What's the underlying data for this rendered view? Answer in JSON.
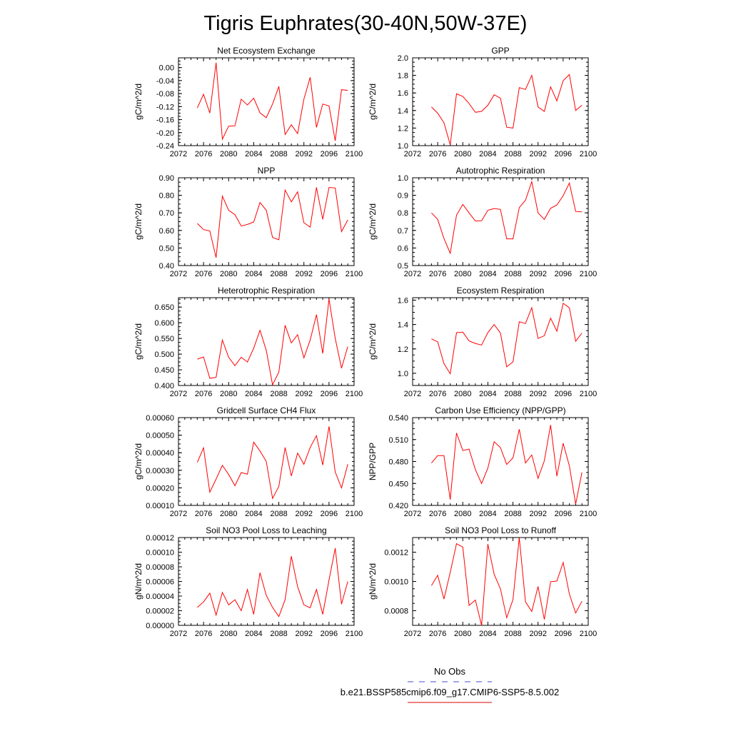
{
  "title": "Tigris Euphrates(30-40N,50W-37E)",
  "legend": {
    "entries": [
      {
        "label": "No Obs",
        "color": "#4a4ad0",
        "style": "dashed"
      },
      {
        "label": "b.e21.BSSP585cmip6.f09_g17.CMIP6-SSP5-8.5.002",
        "color": "#dd0000",
        "style": "solid"
      }
    ]
  },
  "colors": {
    "series": "#ff0000",
    "axis": "#000000"
  },
  "chart_data": [
    {
      "type": "line",
      "title": "Net Ecosystem Exchange",
      "ylabel": "gC/m^2/d",
      "xlim": [
        2072,
        2100
      ],
      "xticks": [
        "2072",
        "2076",
        "2080",
        "2084",
        "2088",
        "2092",
        "2096",
        "2100"
      ],
      "ylim": [
        -0.24,
        0.03
      ],
      "yticks": [
        "0.00",
        "-0.04",
        "-0.08",
        "-0.12",
        "-0.16",
        "-0.20",
        "-0.24"
      ],
      "x": [
        2075,
        2076,
        2077,
        2078,
        2079,
        2080,
        2081,
        2082,
        2083,
        2084,
        2085,
        2086,
        2087,
        2088,
        2089,
        2090,
        2091,
        2092,
        2093,
        2094,
        2095,
        2096,
        2097,
        2098,
        2099
      ],
      "series": [
        {
          "values": [
            -0.124,
            -0.082,
            -0.14,
            0.015,
            -0.22,
            -0.18,
            -0.179,
            -0.097,
            -0.115,
            -0.094,
            -0.139,
            -0.154,
            -0.112,
            -0.058,
            -0.206,
            -0.176,
            -0.203,
            -0.097,
            -0.03,
            -0.184,
            -0.112,
            -0.118,
            -0.225,
            -0.068,
            -0.07
          ]
        }
      ]
    },
    {
      "type": "line",
      "title": "GPP",
      "ylabel": "gC/m^2/d",
      "xlim": [
        2072,
        2100
      ],
      "xticks": [
        "2072",
        "2076",
        "2080",
        "2084",
        "2088",
        "2092",
        "2096",
        "2100"
      ],
      "ylim": [
        1.0,
        2.0
      ],
      "yticks": [
        "2.0",
        "1.8",
        "1.6",
        "1.4",
        "1.2",
        "1.0"
      ],
      "x": [
        2075,
        2076,
        2077,
        2078,
        2079,
        2080,
        2081,
        2082,
        2083,
        2084,
        2085,
        2086,
        2087,
        2088,
        2089,
        2090,
        2091,
        2092,
        2093,
        2094,
        2095,
        2096,
        2097,
        2098,
        2099
      ],
      "series": [
        {
          "values": [
            1.44,
            1.37,
            1.26,
            1.01,
            1.59,
            1.56,
            1.48,
            1.38,
            1.39,
            1.46,
            1.58,
            1.54,
            1.21,
            1.2,
            1.66,
            1.64,
            1.8,
            1.44,
            1.39,
            1.67,
            1.51,
            1.74,
            1.81,
            1.4,
            1.46
          ]
        }
      ]
    },
    {
      "type": "line",
      "title": "NPP",
      "ylabel": "gC/m^2/d",
      "xlim": [
        2072,
        2100
      ],
      "xticks": [
        "2072",
        "2076",
        "2080",
        "2084",
        "2088",
        "2092",
        "2096",
        "2100"
      ],
      "ylim": [
        0.4,
        0.9
      ],
      "yticks": [
        "0.90",
        "0.80",
        "0.70",
        "0.60",
        "0.50",
        "0.40"
      ],
      "x": [
        2075,
        2076,
        2077,
        2078,
        2079,
        2080,
        2081,
        2082,
        2083,
        2084,
        2085,
        2086,
        2087,
        2088,
        2089,
        2090,
        2091,
        2092,
        2093,
        2094,
        2095,
        2096,
        2097,
        2098,
        2099
      ],
      "series": [
        {
          "values": [
            0.64,
            0.605,
            0.597,
            0.445,
            0.795,
            0.715,
            0.69,
            0.625,
            0.634,
            0.648,
            0.759,
            0.715,
            0.56,
            0.547,
            0.83,
            0.763,
            0.82,
            0.644,
            0.619,
            0.845,
            0.663,
            0.845,
            0.842,
            0.593,
            0.66
          ]
        }
      ]
    },
    {
      "type": "line",
      "title": "Autotrophic Respiration",
      "ylabel": "gC/m^2/d",
      "xlim": [
        2072,
        2100
      ],
      "xticks": [
        "2072",
        "2076",
        "2080",
        "2084",
        "2088",
        "2092",
        "2096",
        "2100"
      ],
      "ylim": [
        0.5,
        1.0
      ],
      "yticks": [
        "1.0",
        "0.9",
        "0.8",
        "0.7",
        "0.6",
        "0.5"
      ],
      "x": [
        2075,
        2076,
        2077,
        2078,
        2079,
        2080,
        2081,
        2082,
        2083,
        2084,
        2085,
        2086,
        2087,
        2088,
        2089,
        2090,
        2091,
        2092,
        2093,
        2094,
        2095,
        2096,
        2097,
        2098,
        2099
      ],
      "series": [
        {
          "values": [
            0.8,
            0.763,
            0.654,
            0.57,
            0.787,
            0.848,
            0.8,
            0.754,
            0.755,
            0.815,
            0.825,
            0.82,
            0.652,
            0.652,
            0.83,
            0.872,
            0.978,
            0.8,
            0.763,
            0.826,
            0.845,
            0.898,
            0.97,
            0.808,
            0.806
          ]
        }
      ]
    },
    {
      "type": "line",
      "title": "Heterotrophic Respiration",
      "ylabel": "gC/m^2/d",
      "xlim": [
        2072,
        2100
      ],
      "xticks": [
        "2072",
        "2076",
        "2080",
        "2084",
        "2088",
        "2092",
        "2096",
        "2100"
      ],
      "ylim": [
        0.4,
        0.68
      ],
      "yticks": [
        "0.650",
        "0.600",
        "0.550",
        "0.500",
        "0.450",
        "0.400"
      ],
      "x": [
        2075,
        2076,
        2077,
        2078,
        2079,
        2080,
        2081,
        2082,
        2083,
        2084,
        2085,
        2086,
        2087,
        2088,
        2089,
        2090,
        2091,
        2092,
        2093,
        2094,
        2095,
        2096,
        2097,
        2098,
        2099
      ],
      "series": [
        {
          "values": [
            0.484,
            0.491,
            0.423,
            0.426,
            0.545,
            0.49,
            0.463,
            0.49,
            0.475,
            0.519,
            0.576,
            0.512,
            0.402,
            0.443,
            0.592,
            0.536,
            0.562,
            0.488,
            0.545,
            0.626,
            0.502,
            0.676,
            0.55,
            0.455,
            0.524
          ]
        }
      ]
    },
    {
      "type": "line",
      "title": "Ecosystem Respiration",
      "ylabel": "gC/m^2/d",
      "xlim": [
        2072,
        2100
      ],
      "xticks": [
        "2072",
        "2076",
        "2080",
        "2084",
        "2088",
        "2092",
        "2096",
        "2100"
      ],
      "ylim": [
        0.9,
        1.62
      ],
      "yticks": [
        "1.6",
        "1.4",
        "1.2",
        "1.0"
      ],
      "x": [
        2075,
        2076,
        2077,
        2078,
        2079,
        2080,
        2081,
        2082,
        2083,
        2084,
        2085,
        2086,
        2087,
        2088,
        2089,
        2090,
        2091,
        2092,
        2093,
        2094,
        2095,
        2096,
        2097,
        2098,
        2099
      ],
      "series": [
        {
          "values": [
            1.282,
            1.258,
            1.08,
            0.996,
            1.333,
            1.337,
            1.265,
            1.245,
            1.232,
            1.334,
            1.4,
            1.33,
            1.053,
            1.094,
            1.422,
            1.408,
            1.538,
            1.286,
            1.308,
            1.452,
            1.345,
            1.574,
            1.537,
            1.263,
            1.33
          ]
        }
      ]
    },
    {
      "type": "line",
      "title": "Gridcell Surface CH4 Flux",
      "ylabel": "gC/m^2/d",
      "xlim": [
        2072,
        2100
      ],
      "xticks": [
        "2072",
        "2076",
        "2080",
        "2084",
        "2088",
        "2092",
        "2096",
        "2100"
      ],
      "ylim": [
        0.0001,
        0.0006
      ],
      "yticks": [
        "0.00060",
        "0.00050",
        "0.00040",
        "0.00030",
        "0.00020",
        "0.00010"
      ],
      "x": [
        2075,
        2076,
        2077,
        2078,
        2079,
        2080,
        2081,
        2082,
        2083,
        2084,
        2085,
        2086,
        2087,
        2088,
        2089,
        2090,
        2091,
        2092,
        2093,
        2094,
        2095,
        2096,
        2097,
        2098,
        2099
      ],
      "series": [
        {
          "values": [
            0.000345,
            0.000428,
            0.000175,
            0.00025,
            0.000328,
            0.000276,
            0.000212,
            0.000287,
            0.000278,
            0.00046,
            0.00041,
            0.00035,
            0.00014,
            0.000208,
            0.00043,
            0.000268,
            0.000398,
            0.000334,
            0.00043,
            0.000497,
            0.00033,
            0.00055,
            0.00029,
            0.0002,
            0.000335
          ]
        }
      ]
    },
    {
      "type": "line",
      "title": "Carbon Use Efficiency (NPP/GPP)",
      "ylabel": "NPP/GPP",
      "xlim": [
        2072,
        2100
      ],
      "xticks": [
        "2072",
        "2076",
        "2080",
        "2084",
        "2088",
        "2092",
        "2096",
        "2100"
      ],
      "ylim": [
        0.42,
        0.54
      ],
      "yticks": [
        "0.540",
        "0.510",
        "0.480",
        "0.450",
        "0.420"
      ],
      "x": [
        2075,
        2076,
        2077,
        2078,
        2079,
        2080,
        2081,
        2082,
        2083,
        2084,
        2085,
        2086,
        2087,
        2088,
        2089,
        2090,
        2091,
        2092,
        2093,
        2094,
        2095,
        2096,
        2097,
        2098,
        2099
      ],
      "series": [
        {
          "values": [
            0.478,
            0.488,
            0.488,
            0.428,
            0.519,
            0.495,
            0.497,
            0.469,
            0.45,
            0.471,
            0.507,
            0.499,
            0.476,
            0.485,
            0.524,
            0.478,
            0.489,
            0.457,
            0.481,
            0.53,
            0.46,
            0.505,
            0.474,
            0.422,
            0.465
          ]
        }
      ]
    },
    {
      "type": "line",
      "title": "Soil NO3 Pool Loss to Leaching",
      "ylabel": "gN/m^2/d",
      "xlim": [
        2072,
        2100
      ],
      "xticks": [
        "2072",
        "2076",
        "2080",
        "2084",
        "2088",
        "2092",
        "2096",
        "2100"
      ],
      "ylim": [
        0.0,
        0.00012
      ],
      "yticks": [
        "0.00012",
        "0.00010",
        "0.00008",
        "0.00006",
        "0.00004",
        "0.00002",
        "0.00000"
      ],
      "x": [
        2075,
        2076,
        2077,
        2078,
        2079,
        2080,
        2081,
        2082,
        2083,
        2084,
        2085,
        2086,
        2087,
        2088,
        2089,
        2090,
        2091,
        2092,
        2093,
        2094,
        2095,
        2096,
        2097,
        2098,
        2099
      ],
      "series": [
        {
          "values": [
            2.45e-05,
            3.2e-05,
            4.4e-05,
            1.4e-05,
            4.5e-05,
            2.8e-05,
            3.5e-05,
            2e-05,
            4.9e-05,
            1.5e-05,
            7.2e-05,
            4.1e-05,
            2.45e-05,
            1.2e-05,
            3.5e-05,
            9.45e-05,
            5.3e-05,
            2.8e-05,
            2.4e-05,
            4.9e-05,
            1.5e-05,
            6.2e-05,
            0.0001055,
            2.9e-05,
            6e-05
          ]
        }
      ]
    },
    {
      "type": "line",
      "title": "Soil NO3 Pool Loss to Runoff",
      "ylabel": "gN/m^2/d",
      "xlim": [
        2072,
        2100
      ],
      "xticks": [
        "2072",
        "2076",
        "2080",
        "2084",
        "2088",
        "2092",
        "2096",
        "2100"
      ],
      "ylim": [
        0.0007,
        0.0013
      ],
      "yticks": [
        "0.0012",
        "0.0010",
        "0.0008"
      ],
      "x": [
        2075,
        2076,
        2077,
        2078,
        2079,
        2080,
        2081,
        2082,
        2083,
        2084,
        2085,
        2086,
        2087,
        2088,
        2089,
        2090,
        2091,
        2092,
        2093,
        2094,
        2095,
        2096,
        2097,
        2098,
        2099
      ],
      "series": [
        {
          "values": [
            0.000972,
            0.001042,
            0.00088,
            0.001062,
            0.001258,
            0.001235,
            0.000836,
            0.000873,
            0.0007,
            0.001255,
            0.00105,
            0.00095,
            0.000752,
            0.000876,
            0.0013,
            0.00086,
            0.000795,
            0.000966,
            0.00074,
            0.000998,
            0.001003,
            0.00113,
            0.000913,
            0.000785,
            0.000865
          ]
        }
      ]
    }
  ]
}
